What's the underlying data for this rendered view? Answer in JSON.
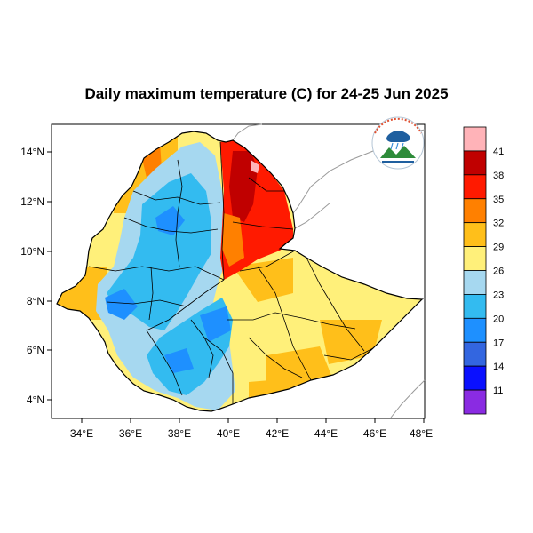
{
  "title": "Daily maximum temperature (C) for 24-25 Jun 2025",
  "map": {
    "lon_ticks": [
      "34°E",
      "36°E",
      "38°E",
      "40°E",
      "42°E",
      "44°E",
      "46°E",
      "48°E"
    ],
    "lat_ticks": [
      "14°N",
      "12°N",
      "10°N",
      "8°N",
      "6°N",
      "4°N"
    ]
  },
  "colorbar": {
    "labels": [
      "41",
      "38",
      "35",
      "32",
      "29",
      "26",
      "23",
      "20",
      "17",
      "14",
      "11"
    ],
    "colors": [
      "#ffb3b8",
      "#c00000",
      "#ff1a00",
      "#ff8000",
      "#ffbf1a",
      "#fff07a",
      "#a6d8f0",
      "#33bbf0",
      "#1e90ff",
      "#3366e0",
      "#0a10ff",
      "#8a2be2"
    ]
  },
  "logo": {
    "icon": "meteorology-agency-logo-icon"
  }
}
